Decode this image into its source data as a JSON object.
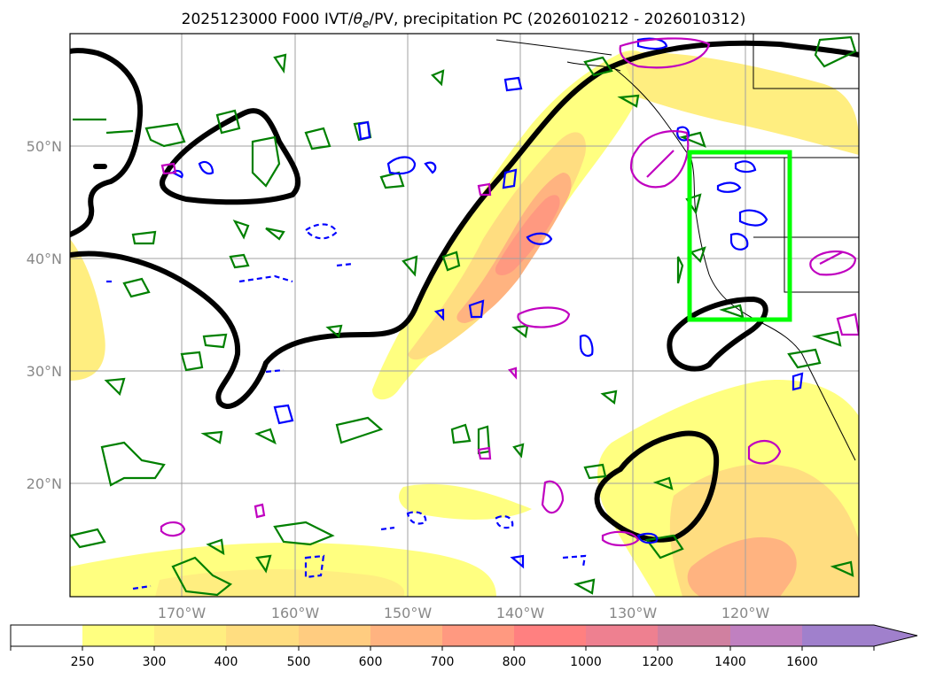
{
  "title_main": "2025123000 F000 IVT/",
  "title_theta": "θ",
  "title_theta_sub": "e",
  "title_rest": "/PV, precipitation PC (2026010212 - 2026010312)",
  "map": {
    "lon_labels": [
      "170°W",
      "160°W",
      "150°W",
      "140°W",
      "130°W",
      "120°W"
    ],
    "lat_labels": [
      "50°N",
      "40°N",
      "30°N",
      "20°N"
    ]
  },
  "legend_colors": {
    "ivt_fill": [
      "#ffffff",
      "#ffff80",
      "#ffee80",
      "#ffdd80",
      "#ffcc80",
      "#ffb380",
      "#ff9980",
      "#ff8080",
      "#ee8090",
      "#d080a0",
      "#c080c0",
      "#a080cc"
    ],
    "contour_black": "#000000",
    "contour_green": "#008000",
    "contour_blue": "#0000ff",
    "contour_magenta": "#c000c0",
    "box": "#00ff00"
  },
  "colorbar": {
    "labels": [
      "250",
      "300",
      "400",
      "500",
      "600",
      "700",
      "800",
      "1000",
      "1200",
      "1400",
      "1600"
    ]
  }
}
